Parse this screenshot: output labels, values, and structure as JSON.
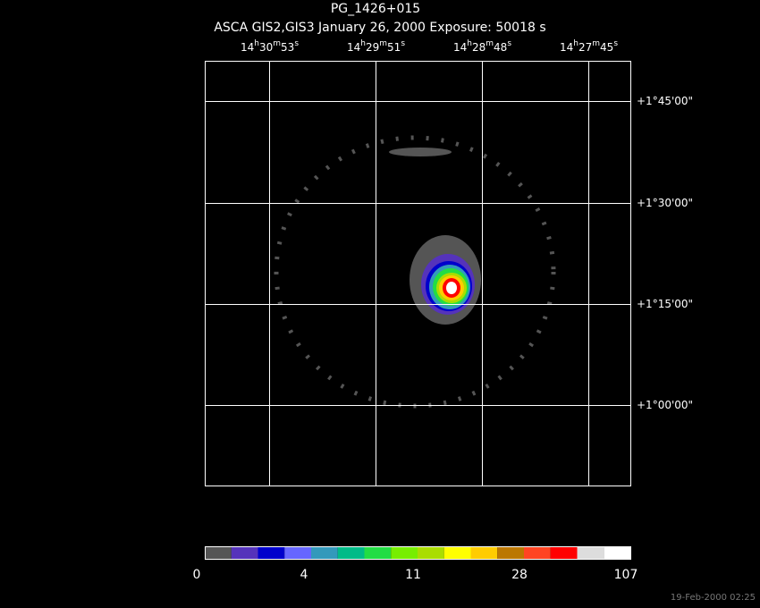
{
  "header": {
    "title": "PG_1426+015",
    "subtitle": "ASCA GIS2,GIS3 January 26, 2000 Exposure: 50018 s"
  },
  "ra_labels": [
    [
      "14",
      "h",
      "30",
      "m",
      "53",
      "s"
    ],
    [
      "14",
      "h",
      "29",
      "m",
      "51",
      "s"
    ],
    [
      "14",
      "h",
      "28",
      "m",
      "48",
      "s"
    ],
    [
      "14",
      "h",
      "27",
      "m",
      "45",
      "s"
    ]
  ],
  "dec_labels": [
    "+1°45'00\"",
    "+1°30'00\"",
    "+1°15'00\"",
    "+1°00'00\""
  ],
  "colorbar": {
    "labels": [
      "0",
      "4",
      "11",
      "28",
      "107"
    ]
  },
  "footer": {
    "timestamp": "19-Feb-2000 02:25"
  }
}
